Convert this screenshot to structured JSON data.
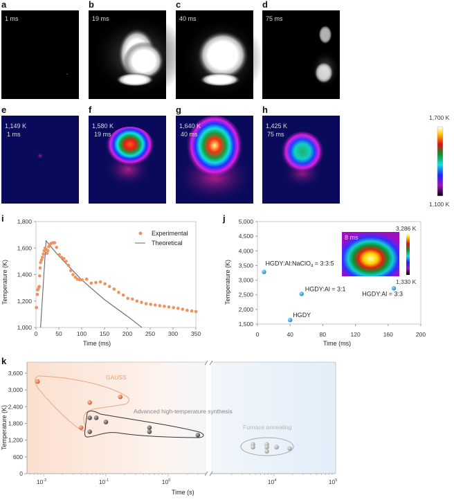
{
  "panels": {
    "a": {
      "letter": "a",
      "time": "1 ms"
    },
    "b": {
      "letter": "b",
      "time": "19 ms"
    },
    "c": {
      "letter": "c",
      "time": "40 ms"
    },
    "d": {
      "letter": "d",
      "time": "75 ms"
    },
    "e": {
      "letter": "e",
      "temp": "1,149 K",
      "time": "1 ms"
    },
    "f": {
      "letter": "f",
      "temp": "1,580 K",
      "time": "19 ms"
    },
    "g": {
      "letter": "g",
      "temp": "1,640 K",
      "time": "40 ms"
    },
    "h": {
      "letter": "h",
      "temp": "1,425 K",
      "time": "75 ms"
    },
    "colorbar": {
      "max": "1,700 K",
      "min": "1,100 K"
    },
    "i": {
      "letter": "i"
    },
    "j": {
      "letter": "j",
      "inset_time": "8 ms",
      "inset_max": "3,286 K",
      "inset_min": "1,330 K"
    },
    "k": {
      "letter": "k"
    }
  },
  "colors": {
    "experimental": "#f0915e",
    "theoretical": "#666666",
    "j_points": "#2aa3dc",
    "gauss": "#e8734a",
    "advanced": "#555555",
    "furnace": "#b9b9b9"
  },
  "chart_data": [
    {
      "id": "i",
      "type": "scatter+line",
      "xlabel": "Time (ms)",
      "ylabel": "Temperature (K)",
      "xlim": [
        0,
        350
      ],
      "ylim": [
        1000,
        1800
      ],
      "xticks": [
        0,
        50,
        100,
        150,
        200,
        250,
        300,
        350
      ],
      "xtick_labels": [
        "0",
        "50",
        "100",
        "150",
        "200",
        "250",
        "300",
        "350"
      ],
      "yticks": [
        1000,
        1200,
        1400,
        1600,
        1800
      ],
      "ytick_labels": [
        "1,000",
        "1,200",
        "1,400",
        "1,600",
        "1,800"
      ],
      "legend": "top-right",
      "series": [
        {
          "name": "Experimental",
          "kind": "scatter",
          "x": [
            1,
            3,
            4,
            6,
            7,
            8,
            9,
            10,
            12,
            14,
            16,
            18,
            20,
            22,
            24,
            26,
            28,
            30,
            33,
            37,
            41,
            45,
            51,
            56,
            61,
            66,
            71,
            76,
            81,
            86,
            91,
            96,
            101,
            111,
            121,
            131,
            141,
            151,
            161,
            171,
            181,
            191,
            201,
            211,
            221,
            231,
            241,
            251,
            261,
            271,
            281,
            291,
            301,
            311,
            321,
            331,
            341,
            350
          ],
          "y": [
            1150,
            1250,
            1285,
            1300,
            1310,
            1390,
            1450,
            1490,
            1510,
            1530,
            1555,
            1580,
            1600,
            1590,
            1560,
            1580,
            1610,
            1625,
            1635,
            1640,
            1640,
            1605,
            1550,
            1530,
            1520,
            1500,
            1470,
            1430,
            1400,
            1380,
            1365,
            1360,
            1360,
            1365,
            1335,
            1340,
            1345,
            1330,
            1310,
            1290,
            1265,
            1245,
            1220,
            1215,
            1200,
            1190,
            1180,
            1175,
            1170,
            1165,
            1160,
            1155,
            1150,
            1145,
            1138,
            1130,
            1125,
            1120
          ]
        },
        {
          "name": "Theoretical",
          "kind": "line",
          "x": [
            10,
            22,
            50,
            75,
            100,
            150,
            200,
            232
          ],
          "y": [
            1000,
            1655,
            1540,
            1450,
            1360,
            1210,
            1085,
            1000
          ]
        }
      ]
    },
    {
      "id": "j",
      "type": "scatter",
      "xlabel": "Time (ms)",
      "ylabel": "Temperature (K)",
      "xlim": [
        0,
        200
      ],
      "ylim": [
        1500,
        5000
      ],
      "xticks": [
        0,
        40,
        80,
        120,
        160,
        200
      ],
      "xtick_labels": [
        "0",
        "40",
        "80",
        "120",
        "160",
        "200"
      ],
      "yticks": [
        1500,
        2000,
        2500,
        3000,
        3500,
        4000,
        4500,
        5000
      ],
      "ytick_labels": [
        "1,500",
        "2,000",
        "2,500",
        "3,000",
        "3,500",
        "4,000",
        "4,500",
        "5,000"
      ],
      "points": [
        {
          "label": "HGDY:Al:NaClO",
          "sub": "4",
          "label_tail": " = 3:3:5",
          "x": 8,
          "y": 3280
        },
        {
          "label": "HGDY:Al = 3:1",
          "x": 54,
          "y": 2530
        },
        {
          "label": "HGDY",
          "x": 40,
          "y": 1640
        },
        {
          "label": "HGDY:Al = 3:3",
          "x": 167,
          "y": 2720
        }
      ]
    },
    {
      "id": "k",
      "type": "scatter",
      "xlabel": "Time (s)",
      "ylabel": "Temperature (K)",
      "xscale": "log",
      "xaxis_break": [
        3,
        1000
      ],
      "ylim": [
        0,
        4000
      ],
      "yticks": [
        0,
        600,
        1200,
        1800,
        2400,
        3000,
        3600
      ],
      "ytick_labels": [
        "0",
        "600",
        "1,200",
        "1,800",
        "2,400",
        "3,000",
        "3,600"
      ],
      "xticks": [
        {
          "base": "10",
          "exp": "-2",
          "v": 0.01
        },
        {
          "base": "10",
          "exp": "-1",
          "v": 0.1
        },
        {
          "base": "10",
          "exp": "0",
          "v": 1
        },
        {
          "base": "10",
          "exp": "4",
          "v": 10000
        },
        {
          "base": "10",
          "exp": "5",
          "v": 100000
        }
      ],
      "series": [
        {
          "name": "GAUSS",
          "x": [
            0.008,
            0.055,
            0.17,
            0.04
          ],
          "y": [
            3300,
            2550,
            2750,
            1650
          ]
        },
        {
          "name": "Advanced high-temperature synthesis",
          "x": [
            0.055,
            0.07,
            0.1,
            0.055,
            0.5,
            0.5,
            3
          ],
          "y": [
            2000,
            2000,
            1850,
            1500,
            1650,
            1500,
            1380
          ]
        },
        {
          "name": "Furnace annealing",
          "x": [
            4500,
            4500,
            7600,
            7600,
            7600,
            11000,
            18000
          ],
          "y": [
            1050,
            950,
            1050,
            950,
            800,
            950,
            900
          ]
        }
      ]
    }
  ]
}
